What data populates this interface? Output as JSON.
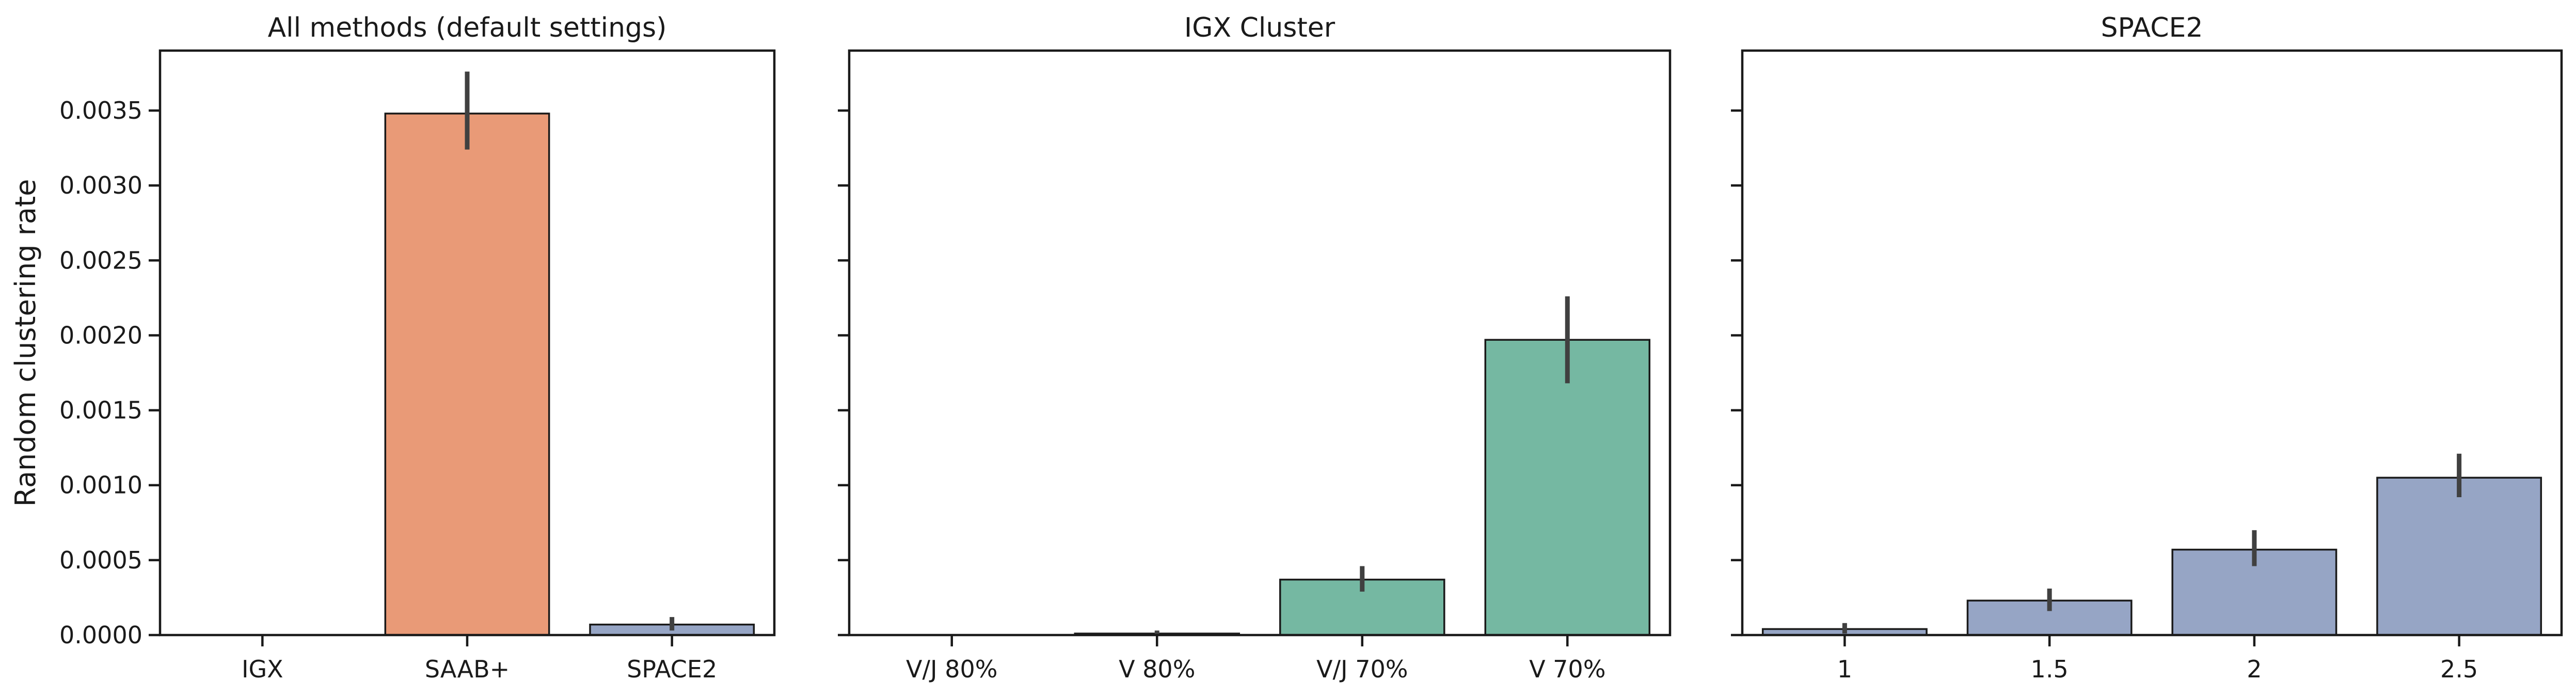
{
  "chart_data": [
    {
      "type": "bar",
      "title": "All methods (default settings)",
      "ylabel": "Random clustering rate",
      "categories": [
        "IGX",
        "SAAB+",
        "SPACE2"
      ],
      "values": [
        0.0,
        0.00348,
        7e-05
      ],
      "error_low": [
        0.0,
        0.00324,
        3e-05
      ],
      "error_high": [
        0.0,
        0.00376,
        0.00012
      ],
      "colors": [
        "#66c2a5",
        "#e99a77",
        "#96a5c5"
      ],
      "ylim": [
        0,
        0.0039
      ],
      "yticks": [
        "0.0000",
        "0.0005",
        "0.0010",
        "0.0015",
        "0.0020",
        "0.0025",
        "0.0030",
        "0.0035"
      ],
      "grid": false
    },
    {
      "type": "bar",
      "title": "IGX Cluster",
      "categories": [
        "V/J 80%",
        "V 80%",
        "V/J 70%",
        "V 70%"
      ],
      "values": [
        0.0,
        1e-05,
        0.00037,
        0.00197
      ],
      "error_low": [
        0.0,
        0.0,
        0.00029,
        0.00168
      ],
      "error_high": [
        0.0,
        3e-05,
        0.00046,
        0.00226
      ],
      "colors": [
        "#75b8a2",
        "#75b8a2",
        "#75b8a2",
        "#75b8a2"
      ],
      "ylim": [
        0,
        0.0039
      ],
      "grid": false
    },
    {
      "type": "bar",
      "title": "SPACE2",
      "categories": [
        "1",
        "1.5",
        "2",
        "2.5"
      ],
      "values": [
        4e-05,
        0.00023,
        0.00057,
        0.00105
      ],
      "error_low": [
        1e-05,
        0.00016,
        0.00046,
        0.00092
      ],
      "error_high": [
        8e-05,
        0.00031,
        0.0007,
        0.00121
      ],
      "colors": [
        "#96a5c5",
        "#96a5c5",
        "#96a5c5",
        "#96a5c5"
      ],
      "ylim": [
        0,
        0.0039
      ],
      "grid": false
    }
  ]
}
